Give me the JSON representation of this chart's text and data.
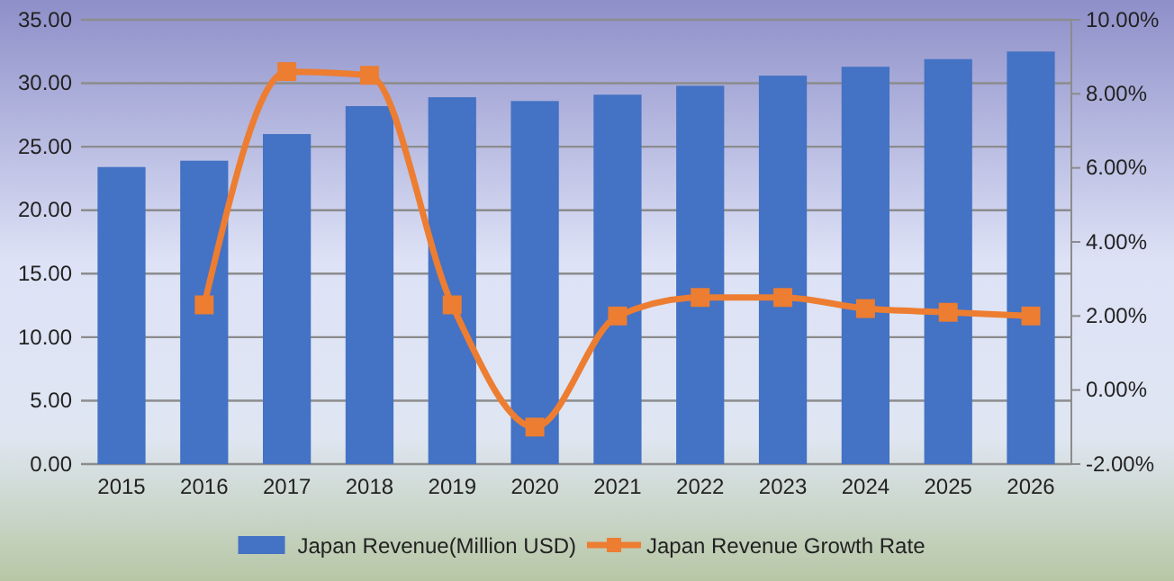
{
  "chart_data": {
    "type": "bar",
    "categories": [
      "2015",
      "2016",
      "2017",
      "2018",
      "2019",
      "2020",
      "2021",
      "2022",
      "2023",
      "2024",
      "2025",
      "2026"
    ],
    "series": [
      {
        "name": "Japan Revenue(Million USD)",
        "color": "#4472c4",
        "values": [
          23.4,
          23.9,
          26.0,
          28.2,
          28.9,
          28.6,
          29.1,
          29.8,
          30.6,
          31.3,
          31.9,
          32.5
        ]
      },
      {
        "name": "Japan Revenue Growth Rate",
        "type": "line",
        "axis": "y2",
        "color": "#ed7d31",
        "values": [
          null,
          2.3,
          8.6,
          8.5,
          2.3,
          -1.0,
          2.0,
          2.5,
          2.5,
          2.2,
          2.1,
          2.0
        ]
      }
    ],
    "ylim": [
      0,
      35
    ],
    "yticks": [
      {
        "value": 0,
        "label": "0.00"
      },
      {
        "value": 5,
        "label": "5.00"
      },
      {
        "value": 10,
        "label": "10.00"
      },
      {
        "value": 15,
        "label": "15.00"
      },
      {
        "value": 20,
        "label": "20.00"
      },
      {
        "value": 25,
        "label": "25.00"
      },
      {
        "value": 30,
        "label": "30.00"
      },
      {
        "value": 35,
        "label": "35.00"
      }
    ],
    "y2lim": [
      -2,
      10
    ],
    "y2ticks": [
      {
        "value": -2,
        "label": "-2.00%"
      },
      {
        "value": 0,
        "label": "0.00%"
      },
      {
        "value": 2,
        "label": "2.00%"
      },
      {
        "value": 4,
        "label": "4.00%"
      },
      {
        "value": 6,
        "label": "6.00%"
      },
      {
        "value": 8,
        "label": "8.00%"
      },
      {
        "value": 10,
        "label": "10.00%"
      }
    ],
    "grid": "y",
    "legend": "bottom",
    "marker": "square"
  }
}
